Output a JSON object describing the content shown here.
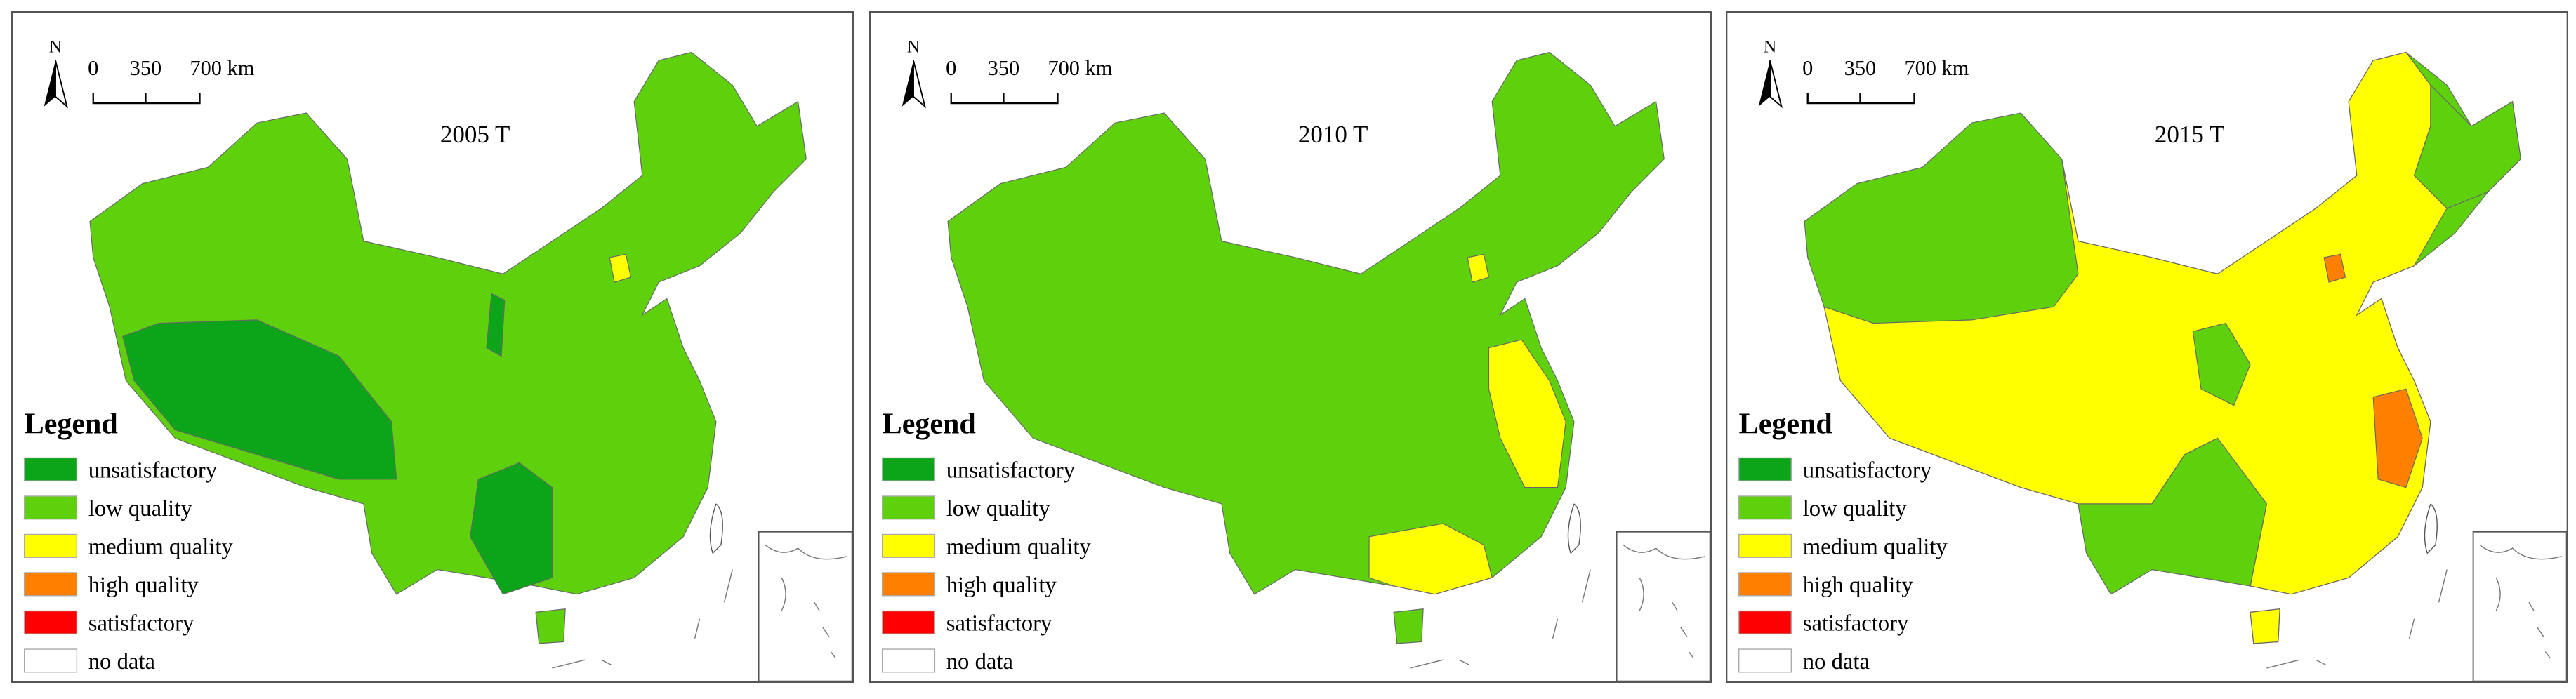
{
  "panels": [
    {
      "title": "2005 T"
    },
    {
      "title": "2010 T"
    },
    {
      "title": "2015 T"
    }
  ],
  "north": "N",
  "scale_bar": {
    "labels": [
      "0",
      "350",
      "700 km"
    ]
  },
  "legend": {
    "title": "Legend",
    "items": [
      {
        "label": "unsatisfactory",
        "color": "#0ca519"
      },
      {
        "label": "low quality",
        "color": "#5fd10c"
      },
      {
        "label": "medium quality",
        "color": "#ffff00"
      },
      {
        "label": "high quality",
        "color": "#ff8000"
      },
      {
        "label": "satisfactory",
        "color": "#ff0000"
      },
      {
        "label": "no data",
        "color": "#ffffff"
      }
    ]
  }
}
